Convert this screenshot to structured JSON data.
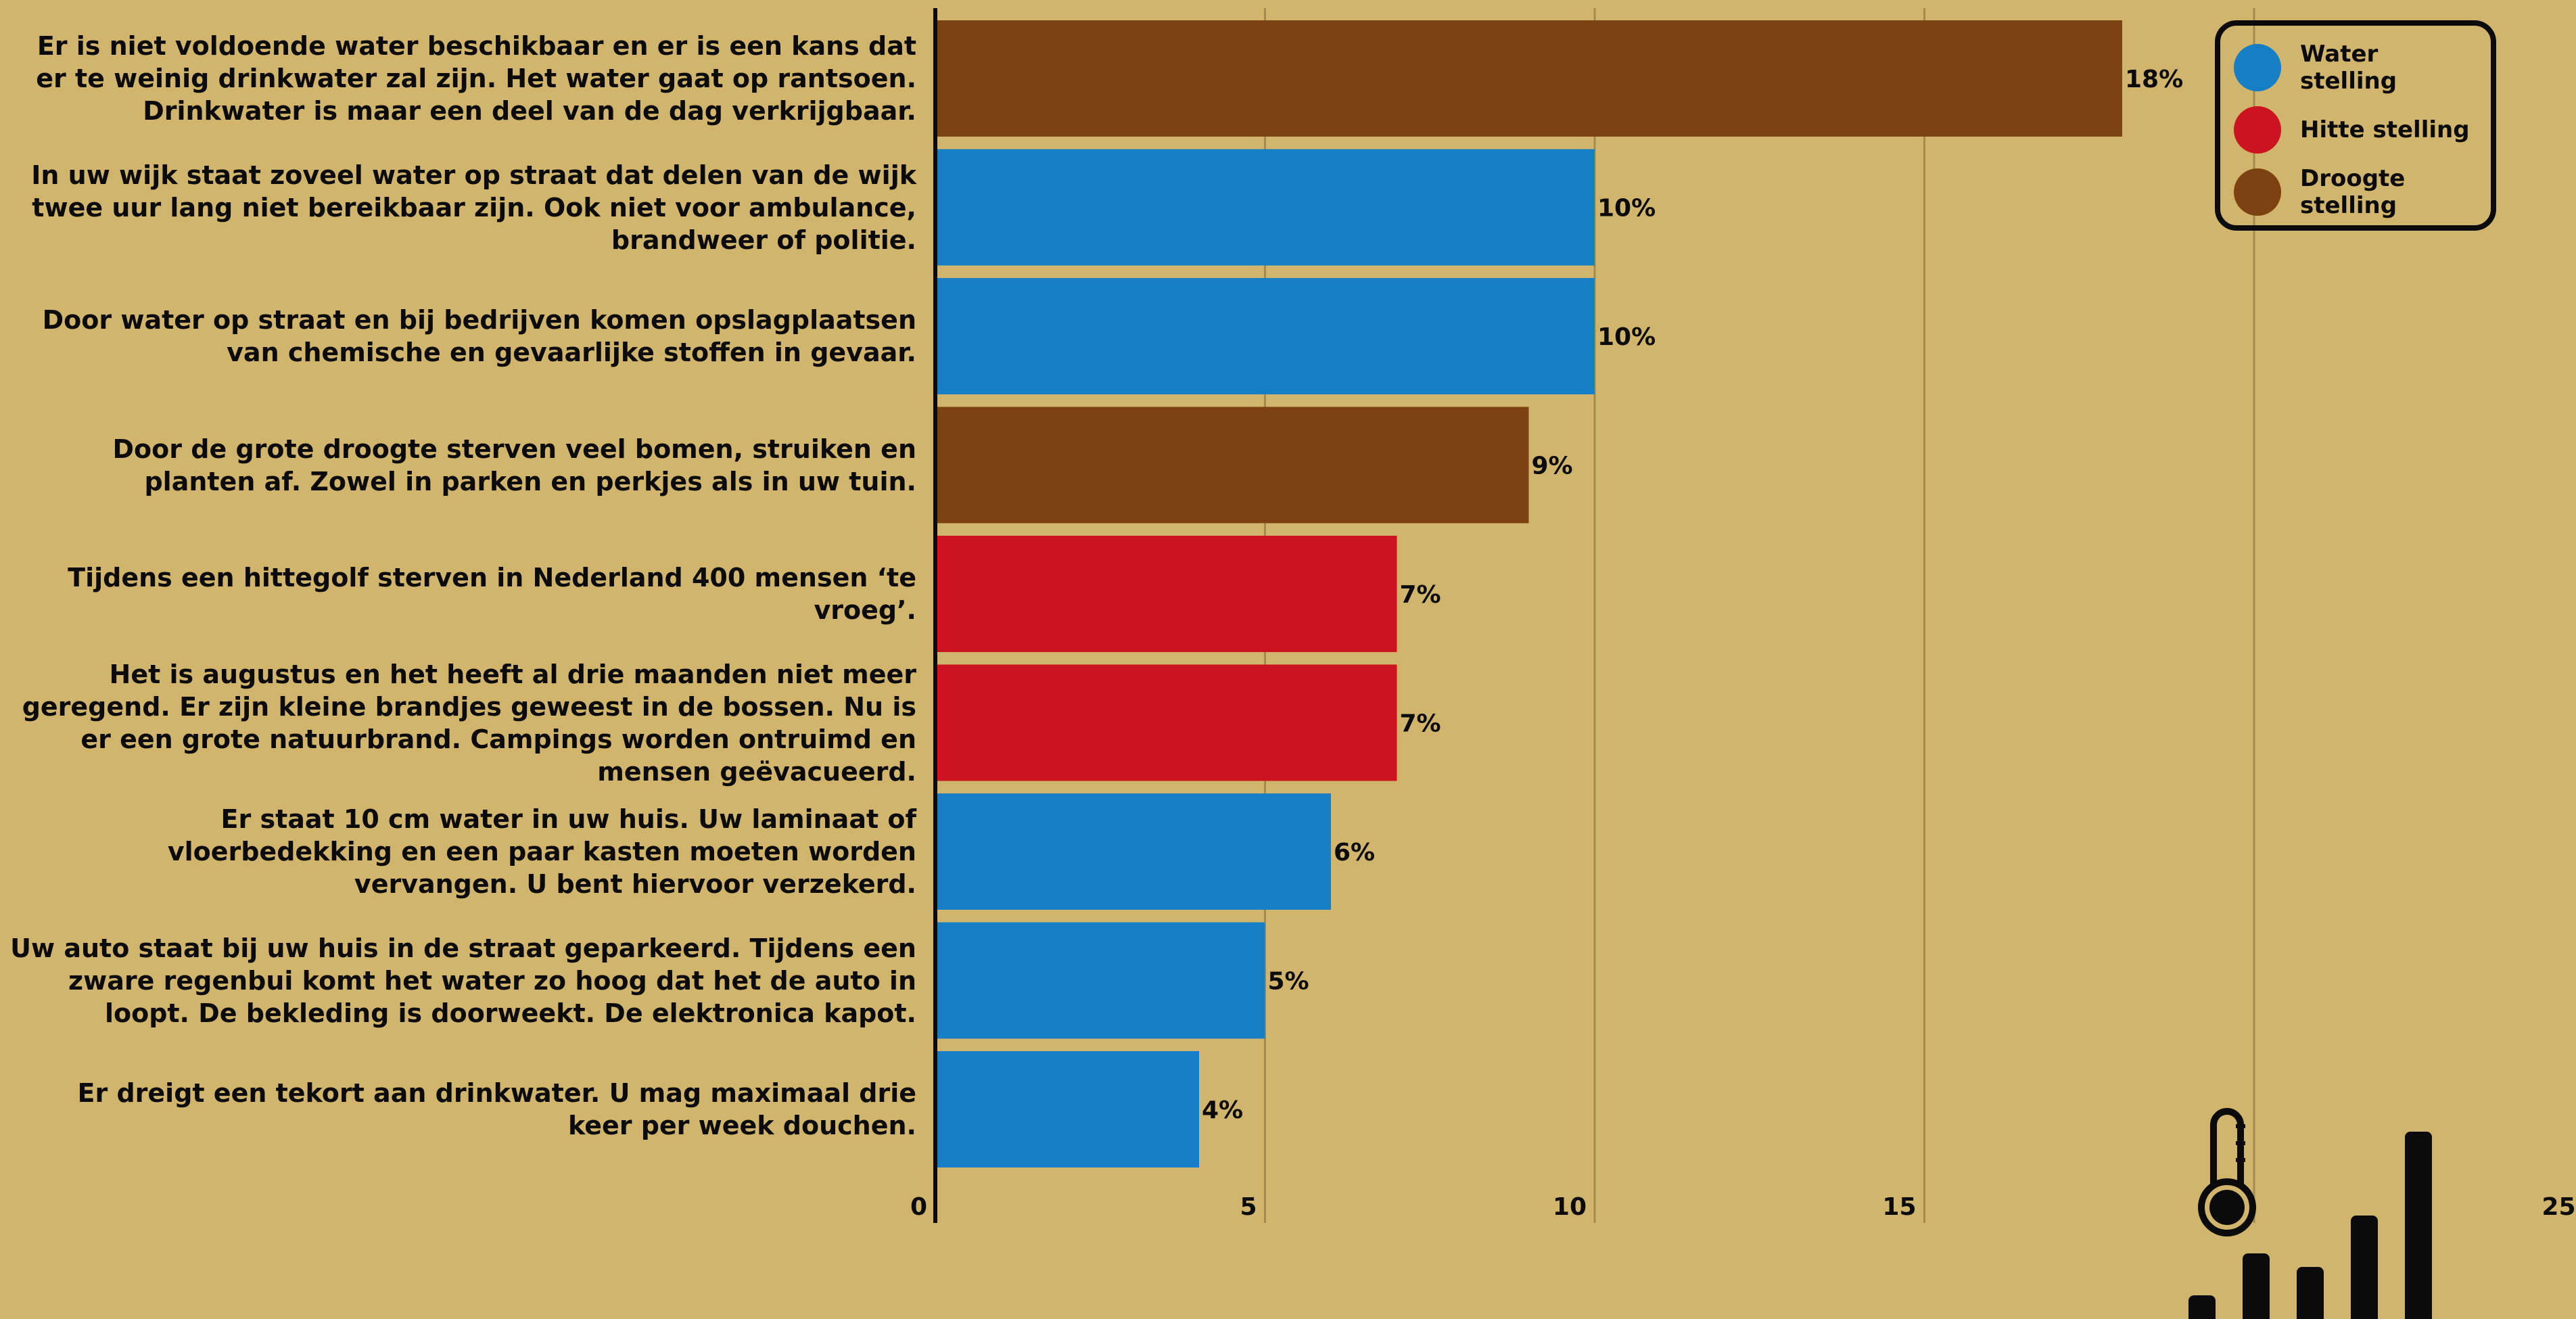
{
  "chart_data": {
    "type": "bar",
    "orientation": "horizontal",
    "categories": [
      "Er is niet voldoende water beschikbaar en er is een kans dat er te weinig drinkwater zal zijn. Het water gaat op rantsoen. Drinkwater is maar een deel van de dag verkrijgbaar.",
      "In uw wijk staat zoveel water op straat dat delen van de wijk twee uur lang niet bereikbaar zijn. Ook niet voor ambulance, brandweer of politie.",
      "Door water op straat en bij bedrijven komen opslagplaatsen van chemische en gevaarlijke stoffen in gevaar.",
      "Door de grote droogte sterven veel bomen, struiken en planten af. Zowel in parken en perkjes als in uw tuin.",
      "Tijdens een hittegolf sterven in Nederland 400 mensen ‘te vroeg’.",
      "Het is augustus en het heeft al drie maanden niet meer geregend. Er zijn kleine brandjes geweest in de bossen. Nu is er een grote natuurbrand. Campings worden ontruimd en mensen geëvacueerd.",
      "Er staat 10 cm water in uw huis. Uw laminaat of vloerbedekking en een paar kasten moeten worden vervangen. U bent hiervoor verzekerd.",
      "Uw auto staat bij uw huis in de straat geparkeerd. Tijdens een zware regenbui komt het water zo hoog dat het de auto in loopt. De bekleding is doorweekt. De elektronica kapot.",
      "Er dreigt een tekort aan drinkwater. U mag maximaal drie keer per week douchen."
    ],
    "values": [
      18,
      10,
      10,
      9,
      7,
      7,
      6,
      5,
      4
    ],
    "value_labels": [
      "18%",
      "10%",
      "10%",
      "9%",
      "7%",
      "7%",
      "6%",
      "5%",
      "4%"
    ],
    "groups": [
      "Droogte stelling",
      "Water stelling",
      "Water stelling",
      "Droogte stelling",
      "Hitte stelling",
      "Hitte stelling",
      "Water stelling",
      "Water stelling",
      "Water stelling"
    ],
    "legend": [
      {
        "name": "Water stelling",
        "color": "#157ec5"
      },
      {
        "name": "Hitte stelling",
        "color": "#cb141f"
      },
      {
        "name": "Droogte stelling",
        "color": "#7d4212"
      }
    ],
    "xlim": [
      0,
      25
    ],
    "xticks": [
      "0",
      "5",
      "10",
      "15",
      "20",
      "25"
    ],
    "grid": true,
    "legend_position": "top-right",
    "title": "",
    "xlabel": "",
    "ylabel": ""
  },
  "decorations": {
    "icons": [
      "thermometer-icon",
      "bar-chart-icon"
    ]
  }
}
